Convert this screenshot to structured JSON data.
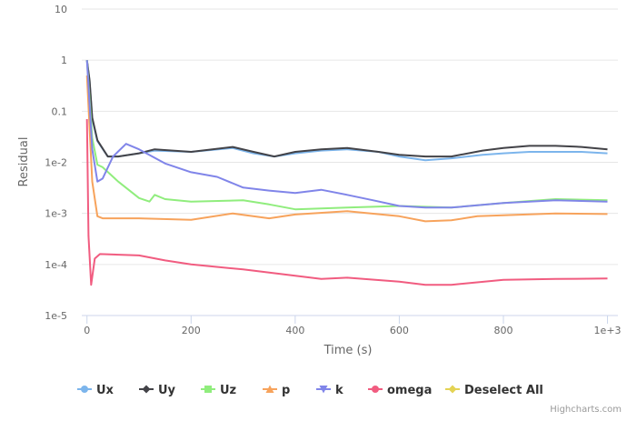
{
  "chart_data": {
    "type": "line",
    "xlabel": "Time (s)",
    "ylabel": "Residual",
    "xlim": [
      -10,
      1020
    ],
    "ylim": [
      1e-05,
      10
    ],
    "yscale": "log",
    "grid": true,
    "legend_placement": "bottom",
    "x_ticks": [
      0,
      200,
      400,
      600,
      800,
      1000
    ],
    "x_tick_labels": [
      "0",
      "200",
      "400",
      "600",
      "800",
      "1e+3"
    ],
    "y_ticks": [
      1e-05,
      0.0001,
      0.001,
      0.01,
      0.1,
      1,
      10
    ],
    "y_tick_labels": [
      "1e-5",
      "1e-4",
      "1e-3",
      "1e-2",
      "0.1",
      "1",
      "10"
    ],
    "series": [
      {
        "name": "Ux",
        "color": "#7cb5ec",
        "marker": "circle",
        "x": [
          0,
          5,
          10,
          20,
          40,
          60,
          100,
          130,
          200,
          280,
          320,
          360,
          400,
          450,
          500,
          560,
          600,
          650,
          700,
          760,
          800,
          850,
          900,
          950,
          1000
        ],
        "y": [
          1,
          0.38,
          0.07,
          0.026,
          0.013,
          0.013,
          0.015,
          0.017,
          0.016,
          0.019,
          0.015,
          0.013,
          0.015,
          0.017,
          0.018,
          0.016,
          0.013,
          0.011,
          0.012,
          0.014,
          0.015,
          0.016,
          0.016,
          0.016,
          0.015
        ]
      },
      {
        "name": "Uy",
        "color": "#434348",
        "marker": "diamond",
        "x": [
          0,
          5,
          10,
          20,
          40,
          60,
          100,
          130,
          200,
          280,
          320,
          360,
          400,
          450,
          500,
          560,
          600,
          650,
          700,
          760,
          800,
          850,
          900,
          950,
          1000
        ],
        "y": [
          1,
          0.4,
          0.075,
          0.027,
          0.013,
          0.013,
          0.015,
          0.018,
          0.016,
          0.02,
          0.016,
          0.013,
          0.016,
          0.018,
          0.019,
          0.016,
          0.014,
          0.013,
          0.013,
          0.017,
          0.019,
          0.021,
          0.021,
          0.02,
          0.018
        ]
      },
      {
        "name": "Uz",
        "color": "#90ed7d",
        "marker": "square",
        "x": [
          0,
          10,
          20,
          30,
          60,
          100,
          120,
          130,
          150,
          200,
          300,
          350,
          400,
          500,
          600,
          700,
          800,
          900,
          1000
        ],
        "y": [
          1,
          0.03,
          0.009,
          0.008,
          0.0042,
          0.002,
          0.0017,
          0.0023,
          0.0019,
          0.0017,
          0.0018,
          0.0015,
          0.0012,
          0.0013,
          0.0014,
          0.0013,
          0.0016,
          0.0019,
          0.0018
        ]
      },
      {
        "name": "p",
        "color": "#f7a35c",
        "marker": "triangle",
        "x": [
          0,
          10,
          20,
          30,
          100,
          200,
          280,
          350,
          400,
          500,
          600,
          650,
          700,
          750,
          800,
          900,
          1000
        ],
        "y": [
          0.5,
          0.0042,
          0.00088,
          0.0008,
          0.0008,
          0.00075,
          0.001,
          0.0008,
          0.00095,
          0.0011,
          0.00088,
          0.0007,
          0.00073,
          0.00088,
          0.00092,
          0.001,
          0.00097
        ]
      },
      {
        "name": "k",
        "color": "#8085e9",
        "marker": "triangle-down",
        "x": [
          0,
          10,
          20,
          30,
          50,
          75,
          100,
          150,
          200,
          250,
          300,
          350,
          400,
          450,
          500,
          550,
          600,
          650,
          700,
          800,
          900,
          1000
        ],
        "y": [
          1,
          0.018,
          0.0042,
          0.0048,
          0.013,
          0.023,
          0.018,
          0.0095,
          0.0064,
          0.0052,
          0.0032,
          0.0028,
          0.0025,
          0.0029,
          0.0023,
          0.0018,
          0.0014,
          0.0013,
          0.0013,
          0.0016,
          0.0018,
          0.0017
        ]
      },
      {
        "name": "omega",
        "color": "#f15c80",
        "marker": "circle",
        "x": [
          0,
          3,
          8,
          15,
          25,
          100,
          150,
          200,
          300,
          400,
          450,
          500,
          600,
          650,
          700,
          800,
          900,
          1000
        ],
        "y": [
          0.07,
          0.00036,
          4e-05,
          0.00013,
          0.00016,
          0.00015,
          0.00012,
          0.0001,
          8e-05,
          6e-05,
          5.2e-05,
          5.5e-05,
          4.6e-05,
          4e-05,
          4e-05,
          5e-05,
          5.2e-05,
          5.3e-05
        ]
      }
    ],
    "legend": [
      {
        "name": "Ux",
        "color": "#7cb5ec",
        "marker": "circle"
      },
      {
        "name": "Uy",
        "color": "#434348",
        "marker": "diamond"
      },
      {
        "name": "Uz",
        "color": "#90ed7d",
        "marker": "square"
      },
      {
        "name": "p",
        "color": "#f7a35c",
        "marker": "triangle"
      },
      {
        "name": "k",
        "color": "#8085e9",
        "marker": "triangle-down"
      },
      {
        "name": "omega",
        "color": "#f15c80",
        "marker": "circle"
      },
      {
        "name": "Deselect All",
        "color": "#e4d354",
        "marker": "diamond"
      }
    ],
    "credits": "Highcharts.com"
  }
}
